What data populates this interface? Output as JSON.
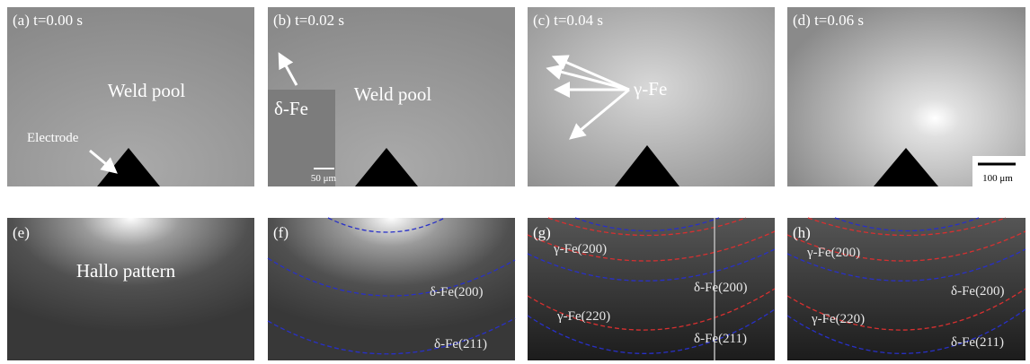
{
  "panels": [
    {
      "label": "(a) t=0.00 s",
      "texts": [
        "Weld pool",
        "Electrode"
      ]
    },
    {
      "label": "(b) t=0.02 s",
      "texts": [
        "Weld pool",
        "δ-Fe",
        "50 μm"
      ]
    },
    {
      "label": "(c) t=0.04 s",
      "texts": [
        "γ-Fe"
      ]
    },
    {
      "label": "(d) t=0.06 s",
      "texts": [
        "100 μm"
      ]
    },
    {
      "label": "(e)",
      "texts": [
        "Hallo pattern"
      ]
    },
    {
      "label": "(f)",
      "texts": [
        "δ-Fe(200)",
        "δ-Fe(211)"
      ]
    },
    {
      "label": "(g)",
      "texts": [
        "γ-Fe(200)",
        "δ-Fe(200)",
        "γ-Fe(220)",
        "δ-Fe(211)"
      ]
    },
    {
      "label": "(h)",
      "texts": [
        "γ-Fe(200)",
        "δ-Fe(200)",
        "γ-Fe(220)",
        "δ-Fe(211)"
      ]
    }
  ]
}
